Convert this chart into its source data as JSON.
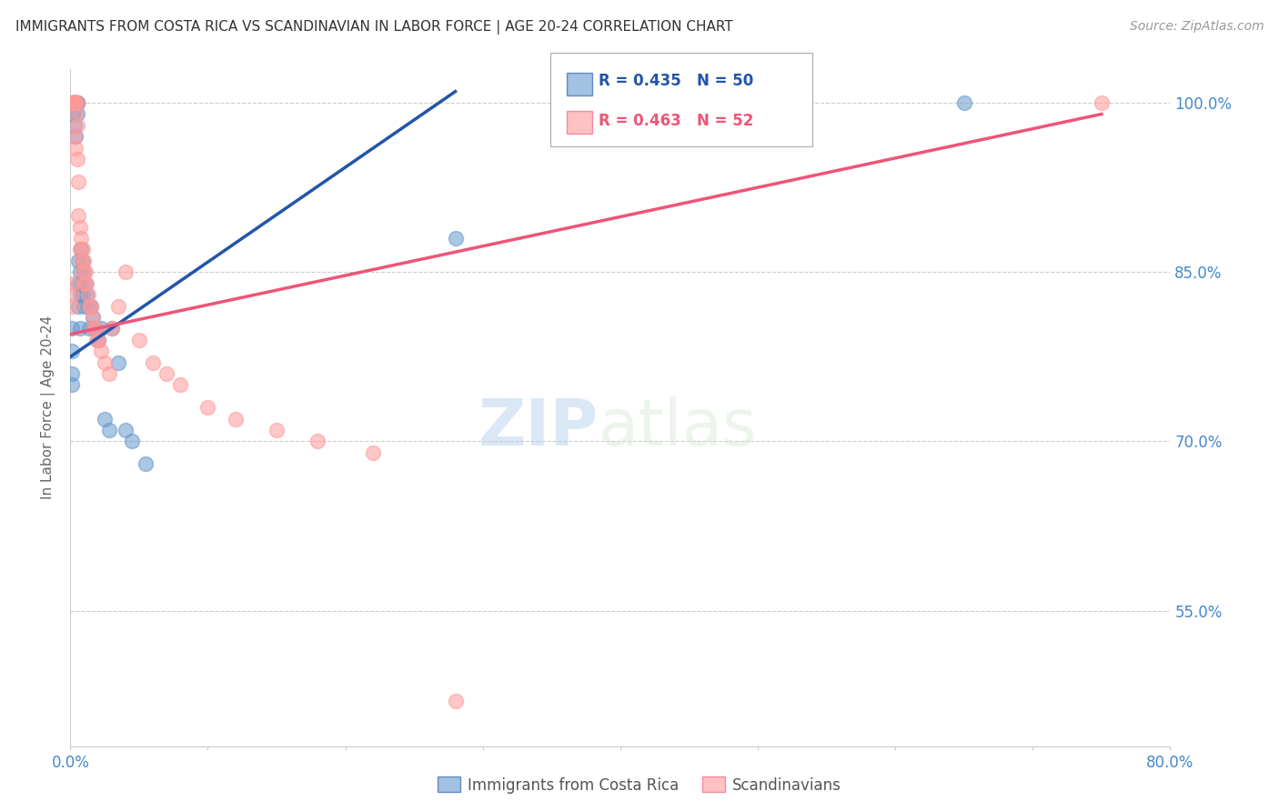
{
  "title": "IMMIGRANTS FROM COSTA RICA VS SCANDINAVIAN IN LABOR FORCE | AGE 20-24 CORRELATION CHART",
  "source": "Source: ZipAtlas.com",
  "ylabel": "In Labor Force | Age 20-24",
  "blue_R": 0.435,
  "blue_N": 50,
  "pink_R": 0.463,
  "pink_N": 52,
  "xlim": [
    0.0,
    0.8
  ],
  "ylim": [
    0.43,
    1.03
  ],
  "yticks": [
    0.55,
    0.7,
    0.85,
    1.0
  ],
  "ytick_labels": [
    "55.0%",
    "70.0%",
    "85.0%",
    "100.0%"
  ],
  "blue_color": "#6699CC",
  "pink_color": "#FF9999",
  "blue_line_color": "#2255AA",
  "pink_line_color": "#EE5577",
  "axis_color": "#4488CC",
  "watermark_zip": "ZIP",
  "watermark_atlas": "atlas",
  "background_color": "#FFFFFF",
  "blue_scatter_x": [
    0.001,
    0.001,
    0.001,
    0.001,
    0.002,
    0.002,
    0.002,
    0.002,
    0.003,
    0.003,
    0.003,
    0.003,
    0.004,
    0.004,
    0.004,
    0.005,
    0.005,
    0.005,
    0.005,
    0.006,
    0.006,
    0.006,
    0.007,
    0.007,
    0.007,
    0.008,
    0.008,
    0.009,
    0.009,
    0.01,
    0.01,
    0.011,
    0.012,
    0.013,
    0.014,
    0.015,
    0.016,
    0.017,
    0.018,
    0.02,
    0.022,
    0.025,
    0.028,
    0.03,
    0.035,
    0.04,
    0.045,
    0.055,
    0.28,
    0.65
  ],
  "blue_scatter_y": [
    0.8,
    0.78,
    0.76,
    0.75,
    1.0,
    1.0,
    1.0,
    0.99,
    1.0,
    1.0,
    1.0,
    0.98,
    1.0,
    1.0,
    0.97,
    1.0,
    1.0,
    1.0,
    0.99,
    0.86,
    0.84,
    0.82,
    0.85,
    0.83,
    0.8,
    0.87,
    0.84,
    0.86,
    0.83,
    0.85,
    0.82,
    0.84,
    0.83,
    0.82,
    0.8,
    0.82,
    0.81,
    0.8,
    0.8,
    0.79,
    0.8,
    0.72,
    0.71,
    0.8,
    0.77,
    0.71,
    0.7,
    0.68,
    0.88,
    1.0
  ],
  "pink_scatter_x": [
    0.001,
    0.001,
    0.001,
    0.002,
    0.002,
    0.002,
    0.003,
    0.003,
    0.003,
    0.004,
    0.004,
    0.004,
    0.005,
    0.005,
    0.005,
    0.006,
    0.006,
    0.007,
    0.007,
    0.008,
    0.008,
    0.009,
    0.009,
    0.01,
    0.01,
    0.011,
    0.012,
    0.013,
    0.014,
    0.015,
    0.016,
    0.017,
    0.018,
    0.019,
    0.02,
    0.022,
    0.025,
    0.028,
    0.03,
    0.035,
    0.04,
    0.05,
    0.06,
    0.07,
    0.08,
    0.1,
    0.12,
    0.15,
    0.18,
    0.22,
    0.28,
    0.75
  ],
  "pink_scatter_y": [
    0.84,
    0.83,
    0.82,
    1.0,
    1.0,
    1.0,
    1.0,
    1.0,
    0.97,
    1.0,
    0.99,
    0.96,
    1.0,
    0.98,
    0.95,
    0.93,
    0.9,
    0.89,
    0.87,
    0.88,
    0.86,
    0.87,
    0.85,
    0.86,
    0.84,
    0.85,
    0.84,
    0.83,
    0.82,
    0.82,
    0.81,
    0.8,
    0.8,
    0.79,
    0.79,
    0.78,
    0.77,
    0.76,
    0.8,
    0.82,
    0.85,
    0.79,
    0.77,
    0.76,
    0.75,
    0.73,
    0.72,
    0.71,
    0.7,
    0.69,
    0.47,
    1.0
  ],
  "blue_trend": [
    0.0,
    0.65,
    0.83,
    1.01
  ],
  "pink_trend": [
    0.0,
    0.75,
    0.84,
    0.93
  ]
}
